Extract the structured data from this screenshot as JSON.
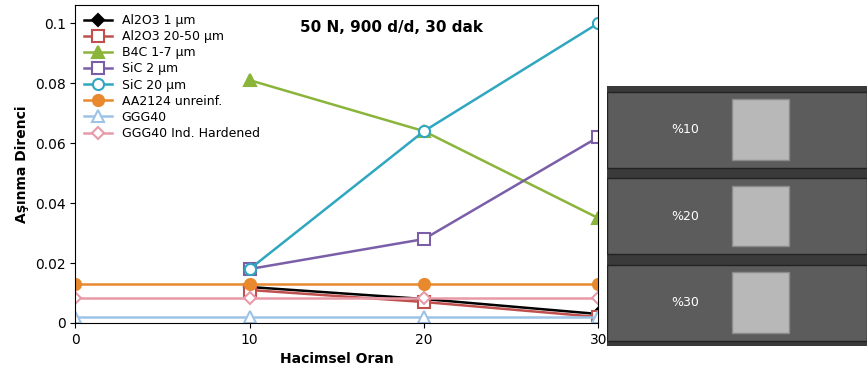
{
  "chart_data": {
    "type": "line",
    "annotation": "50 N, 900 d/d, 30 dak",
    "x_label": "Hacimsel Oran",
    "y_label": "Aşınma Direnci",
    "xlim": [
      0,
      30
    ],
    "xticks": [
      0,
      10,
      20,
      30
    ],
    "ylim": [
      0,
      0.106
    ],
    "yticks": [
      0,
      0.02,
      0.04,
      0.06,
      0.08,
      0.1
    ],
    "grid": false,
    "legend": "upper left",
    "series": [
      {
        "name": "Al2O3 1 µm",
        "color": "#000000",
        "marker": "diamond",
        "line_style": "solid",
        "x": [
          10,
          20,
          30
        ],
        "values": [
          0.012,
          0.008,
          0.003
        ]
      },
      {
        "name": "Al2O3 20-50 µm",
        "color": "#c0504d",
        "marker": "open_square",
        "line_style": "solid",
        "x": [
          10,
          20,
          30
        ],
        "values": [
          0.011,
          0.007,
          0.002
        ]
      },
      {
        "name": "B4C 1-7 µm",
        "color": "#8ab43a",
        "marker": "triangle",
        "line_style": "solid",
        "x": [
          10,
          20,
          30
        ],
        "values": [
          0.081,
          0.064,
          0.035
        ]
      },
      {
        "name": "SiC 2 µm",
        "color": "#7a5ea8",
        "marker": "open_square",
        "line_style": "solid",
        "x": [
          10,
          20,
          30
        ],
        "values": [
          0.018,
          0.028,
          0.062
        ]
      },
      {
        "name": "SiC 20 µm",
        "color": "#2fa7c0",
        "marker": "open_circle",
        "line_style": "solid",
        "x": [
          10,
          20,
          30
        ],
        "values": [
          0.018,
          0.064,
          0.1
        ]
      },
      {
        "name": "AA2124 unreinf.",
        "color": "#e8892e",
        "marker": "circle",
        "line_style": "solid",
        "x": [
          0,
          10,
          20,
          30
        ],
        "values": [
          0.013,
          0.013,
          0.013,
          0.013
        ]
      },
      {
        "name": "GGG40",
        "color": "#9dc3e6",
        "marker": "open_triangle",
        "line_style": "solid",
        "x": [
          0,
          10,
          20,
          30
        ],
        "values": [
          0.002,
          0.002,
          0.002,
          0.002
        ]
      },
      {
        "name": "GGG40 Ind. Hardened",
        "color": "#e89aa8",
        "marker": "open_diamond",
        "line_style": "solid",
        "x": [
          0,
          10,
          20,
          30
        ],
        "values": [
          0.0085,
          0.0085,
          0.0085,
          0.0085
        ]
      }
    ],
    "image_labels": [
      "%10",
      "%20",
      "%30"
    ]
  }
}
